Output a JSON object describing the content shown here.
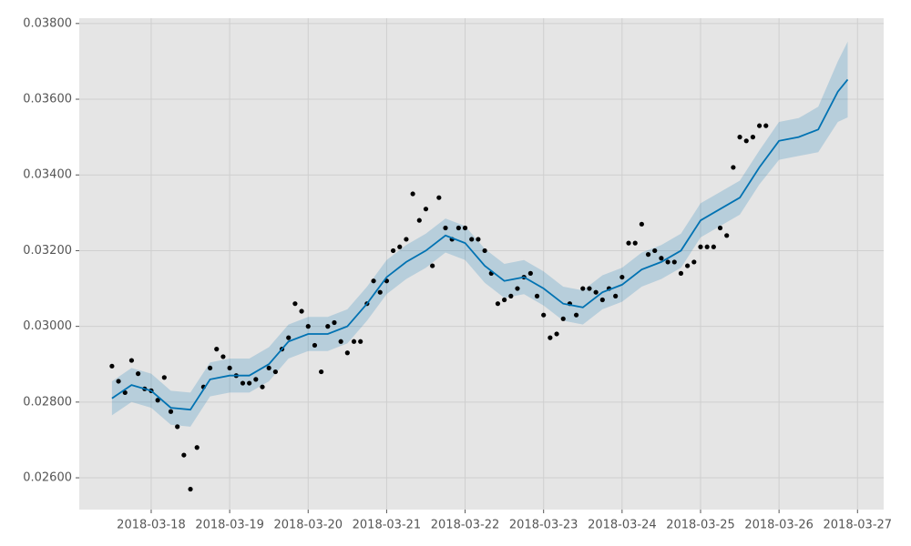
{
  "chart_data": {
    "type": "line",
    "xlim": [
      "2018-03-17T02:00",
      "2018-03-27T08:00"
    ],
    "xticks": [
      "2018-03-18",
      "2018-03-19",
      "2018-03-20",
      "2018-03-21",
      "2018-03-22",
      "2018-03-23",
      "2018-03-24",
      "2018-03-25",
      "2018-03-26",
      "2018-03-27"
    ],
    "ylim": [
      0.02516,
      0.03814
    ],
    "yticks": [
      {
        "value": 0.026,
        "label": "0.02600"
      },
      {
        "value": 0.028,
        "label": "0.02800"
      },
      {
        "value": 0.03,
        "label": "0.03000"
      },
      {
        "value": 0.032,
        "label": "0.03200"
      },
      {
        "value": 0.034,
        "label": "0.03400"
      },
      {
        "value": 0.036,
        "label": "0.03600"
      },
      {
        "value": 0.038,
        "label": "0.03800"
      }
    ],
    "grid": true,
    "observed": {
      "color": "#000000",
      "x": [
        "2018-03-17T12:00",
        "2018-03-17T14:00",
        "2018-03-17T16:00",
        "2018-03-17T18:00",
        "2018-03-17T20:00",
        "2018-03-17T22:00",
        "2018-03-18T00:00",
        "2018-03-18T02:00",
        "2018-03-18T04:00",
        "2018-03-18T06:00",
        "2018-03-18T08:00",
        "2018-03-18T10:00",
        "2018-03-18T12:00",
        "2018-03-18T14:00",
        "2018-03-18T16:00",
        "2018-03-18T18:00",
        "2018-03-18T20:00",
        "2018-03-18T22:00",
        "2018-03-19T00:00",
        "2018-03-19T02:00",
        "2018-03-19T04:00",
        "2018-03-19T06:00",
        "2018-03-19T08:00",
        "2018-03-19T10:00",
        "2018-03-19T12:00",
        "2018-03-19T14:00",
        "2018-03-19T16:00",
        "2018-03-19T18:00",
        "2018-03-19T20:00",
        "2018-03-19T22:00",
        "2018-03-20T00:00",
        "2018-03-20T02:00",
        "2018-03-20T04:00",
        "2018-03-20T06:00",
        "2018-03-20T08:00",
        "2018-03-20T10:00",
        "2018-03-20T12:00",
        "2018-03-20T14:00",
        "2018-03-20T16:00",
        "2018-03-20T18:00",
        "2018-03-20T20:00",
        "2018-03-20T22:00",
        "2018-03-21T00:00",
        "2018-03-21T02:00",
        "2018-03-21T04:00",
        "2018-03-21T06:00",
        "2018-03-21T08:00",
        "2018-03-21T10:00",
        "2018-03-21T12:00",
        "2018-03-21T14:00",
        "2018-03-21T16:00",
        "2018-03-21T18:00",
        "2018-03-21T20:00",
        "2018-03-21T22:00",
        "2018-03-22T00:00",
        "2018-03-22T02:00",
        "2018-03-22T04:00",
        "2018-03-22T06:00",
        "2018-03-22T08:00",
        "2018-03-22T10:00",
        "2018-03-22T12:00",
        "2018-03-22T14:00",
        "2018-03-22T16:00",
        "2018-03-22T18:00",
        "2018-03-22T20:00",
        "2018-03-22T22:00",
        "2018-03-23T00:00",
        "2018-03-23T02:00",
        "2018-03-23T04:00",
        "2018-03-23T06:00",
        "2018-03-23T08:00",
        "2018-03-23T10:00",
        "2018-03-23T12:00",
        "2018-03-23T14:00",
        "2018-03-23T16:00",
        "2018-03-23T18:00",
        "2018-03-23T20:00",
        "2018-03-23T22:00",
        "2018-03-24T00:00",
        "2018-03-24T02:00",
        "2018-03-24T04:00",
        "2018-03-24T06:00",
        "2018-03-24T08:00",
        "2018-03-24T10:00",
        "2018-03-24T12:00",
        "2018-03-24T14:00",
        "2018-03-24T16:00",
        "2018-03-24T18:00",
        "2018-03-24T20:00",
        "2018-03-24T22:00",
        "2018-03-25T00:00",
        "2018-03-25T02:00",
        "2018-03-25T04:00",
        "2018-03-25T06:00",
        "2018-03-25T08:00",
        "2018-03-25T10:00",
        "2018-03-25T12:00",
        "2018-03-25T14:00",
        "2018-03-25T16:00",
        "2018-03-25T18:00",
        "2018-03-25T20:00"
      ],
      "values": [
        0.02895,
        0.02855,
        0.02825,
        0.0291,
        0.02875,
        0.02835,
        0.0283,
        0.02805,
        0.02865,
        0.02775,
        0.02735,
        0.0266,
        0.0257,
        0.0268,
        0.0284,
        0.0289,
        0.0294,
        0.0292,
        0.0289,
        0.0287,
        0.0285,
        0.0285,
        0.0286,
        0.0284,
        0.0289,
        0.0288,
        0.0294,
        0.0297,
        0.0306,
        0.0304,
        0.03,
        0.0295,
        0.0288,
        0.03,
        0.0301,
        0.0296,
        0.0293,
        0.0296,
        0.0296,
        0.0306,
        0.0312,
        0.0309,
        0.0312,
        0.032,
        0.0321,
        0.0323,
        0.0335,
        0.0328,
        0.0331,
        0.0316,
        0.0334,
        0.0326,
        0.0323,
        0.0326,
        0.0326,
        0.0323,
        0.0323,
        0.032,
        0.0314,
        0.0306,
        0.0307,
        0.0308,
        0.031,
        0.0313,
        0.0314,
        0.0308,
        0.0303,
        0.0297,
        0.0298,
        0.0302,
        0.0306,
        0.0303,
        0.031,
        0.031,
        0.0309,
        0.0307,
        0.031,
        0.0308,
        0.0313,
        0.0322,
        0.0322,
        0.0327,
        0.0319,
        0.032,
        0.0318,
        0.0317,
        0.0317,
        0.0314,
        0.0316,
        0.0317,
        0.0321,
        0.0321,
        0.0321,
        0.0326,
        0.0324,
        0.0342,
        0.035,
        0.0349,
        0.035,
        0.0353,
        0.0353
      ]
    },
    "forecast": {
      "color": "#0072b2",
      "band_color": "#0072b2",
      "x": [
        "2018-03-17T12:00",
        "2018-03-17T18:00",
        "2018-03-18T00:00",
        "2018-03-18T06:00",
        "2018-03-18T12:00",
        "2018-03-18T18:00",
        "2018-03-19T00:00",
        "2018-03-19T06:00",
        "2018-03-19T12:00",
        "2018-03-19T18:00",
        "2018-03-20T00:00",
        "2018-03-20T06:00",
        "2018-03-20T12:00",
        "2018-03-20T18:00",
        "2018-03-21T00:00",
        "2018-03-21T06:00",
        "2018-03-21T12:00",
        "2018-03-21T18:00",
        "2018-03-22T00:00",
        "2018-03-22T06:00",
        "2018-03-22T12:00",
        "2018-03-22T18:00",
        "2018-03-23T00:00",
        "2018-03-23T06:00",
        "2018-03-23T12:00",
        "2018-03-23T18:00",
        "2018-03-24T00:00",
        "2018-03-24T06:00",
        "2018-03-24T12:00",
        "2018-03-24T18:00",
        "2018-03-25T00:00",
        "2018-03-25T06:00",
        "2018-03-25T12:00",
        "2018-03-25T18:00",
        "2018-03-26T00:00",
        "2018-03-26T06:00",
        "2018-03-26T12:00",
        "2018-03-26T18:00",
        "2018-03-26T21:00"
      ],
      "values": [
        0.0281,
        0.02845,
        0.0283,
        0.02785,
        0.0278,
        0.0286,
        0.0287,
        0.0287,
        0.029,
        0.0296,
        0.0298,
        0.0298,
        0.03,
        0.0306,
        0.0313,
        0.0317,
        0.032,
        0.0324,
        0.0322,
        0.0316,
        0.0312,
        0.0313,
        0.031,
        0.0306,
        0.0305,
        0.0309,
        0.0311,
        0.0315,
        0.0317,
        0.032,
        0.0328,
        0.0331,
        0.0334,
        0.0342,
        0.0349,
        0.035,
        0.0352,
        0.0362,
        0.03652
      ],
      "lower": [
        0.02765,
        0.028,
        0.02785,
        0.0274,
        0.02735,
        0.02815,
        0.02825,
        0.02825,
        0.02855,
        0.02915,
        0.02935,
        0.02935,
        0.02955,
        0.03015,
        0.03085,
        0.03125,
        0.03155,
        0.03195,
        0.03175,
        0.03115,
        0.03075,
        0.03085,
        0.03055,
        0.03015,
        0.03005,
        0.03045,
        0.03065,
        0.03105,
        0.03125,
        0.03155,
        0.03235,
        0.03265,
        0.03295,
        0.03375,
        0.0344,
        0.0345,
        0.0346,
        0.0354,
        0.03552
      ],
      "upper": [
        0.02855,
        0.0289,
        0.02875,
        0.0283,
        0.02825,
        0.02905,
        0.02915,
        0.02915,
        0.02945,
        0.03005,
        0.03025,
        0.03025,
        0.03045,
        0.03105,
        0.03175,
        0.03215,
        0.03245,
        0.03285,
        0.03265,
        0.03205,
        0.03165,
        0.03175,
        0.03145,
        0.03105,
        0.03095,
        0.03135,
        0.03155,
        0.03195,
        0.03215,
        0.03245,
        0.03325,
        0.03355,
        0.03385,
        0.03465,
        0.0354,
        0.0355,
        0.0358,
        0.037,
        0.03752
      ]
    }
  }
}
